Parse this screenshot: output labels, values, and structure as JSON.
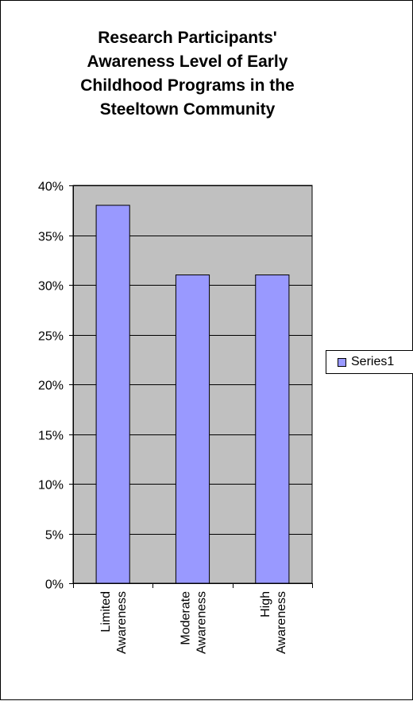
{
  "chart_data": {
    "type": "bar",
    "title_lines": [
      "Research Participants'",
      "Awareness Level of Early",
      "Childhood Programs in the",
      "Steeltown Community"
    ],
    "categories": [
      [
        "Limited",
        "Awareness"
      ],
      [
        "Moderate",
        "Awareness"
      ],
      [
        "High",
        "Awareness"
      ]
    ],
    "series": [
      {
        "name": "Series1",
        "values": [
          0.38,
          0.31,
          0.31
        ]
      }
    ],
    "ylim": [
      0,
      0.4
    ],
    "yticks": [
      {
        "value": 0.4,
        "label": "40%"
      },
      {
        "value": 0.35,
        "label": "35%"
      },
      {
        "value": 0.3,
        "label": "30%"
      },
      {
        "value": 0.25,
        "label": "25%"
      },
      {
        "value": 0.2,
        "label": "20%"
      },
      {
        "value": 0.15,
        "label": "15%"
      },
      {
        "value": 0.1,
        "label": "10%"
      },
      {
        "value": 0.05,
        "label": "5%"
      },
      {
        "value": 0.0,
        "label": "0%"
      }
    ],
    "grid": true,
    "legend_position": "right",
    "colors": {
      "plot_background": "#c0c0c0",
      "bar_fill": "#9999ff",
      "outline": "#000000"
    }
  }
}
